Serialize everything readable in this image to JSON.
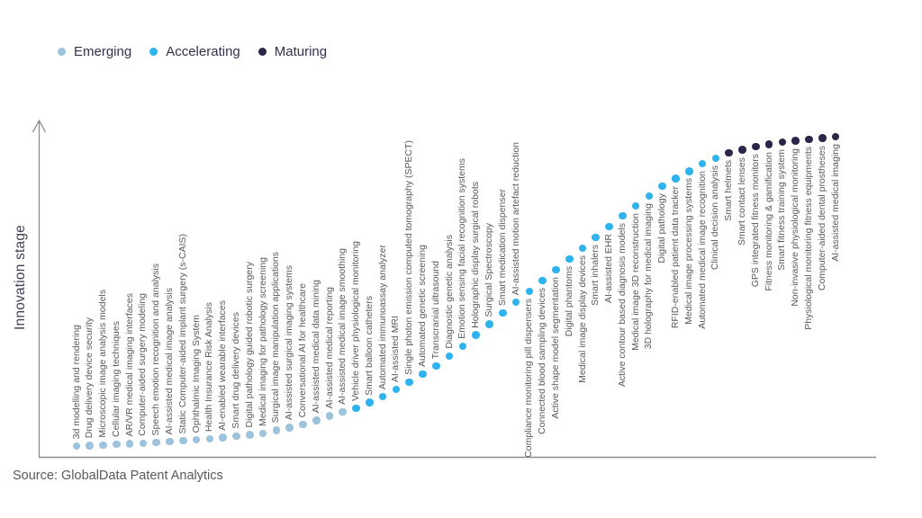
{
  "legend": {
    "items": [
      {
        "label": "Emerging",
        "color": "#9CC2DC"
      },
      {
        "label": "Accelerating",
        "color": "#2FB3EE"
      },
      {
        "label": "Maturing",
        "color": "#2B2649"
      }
    ]
  },
  "source_text": "Source: GlobalData Patent Analytics",
  "chart_data": {
    "type": "scatter",
    "title": "",
    "xlabel": "",
    "ylabel": "Innovation stage",
    "grid": false,
    "legend_position": "top-left",
    "axis_color": "#8C8C8C",
    "label_color": "#595959",
    "stage_colors": {
      "Emerging": "#9CC2DC",
      "Accelerating": "#2FB3EE",
      "Maturing": "#2B2649"
    },
    "description": "Technologies ordered left-to-right by increasing innovation stage along an S-curve; no numeric axes shown",
    "points": [
      {
        "label": "3d modelling and rendering",
        "stage": "Emerging"
      },
      {
        "label": "Drug delivery device security",
        "stage": "Emerging"
      },
      {
        "label": "Microscopic image analysis models",
        "stage": "Emerging"
      },
      {
        "label": "Cellular imaging techniques",
        "stage": "Emerging"
      },
      {
        "label": "AR/VR medical imaging interfaces",
        "stage": "Emerging"
      },
      {
        "label": "Computer-aided surgery modeling",
        "stage": "Emerging"
      },
      {
        "label": "Speech emotion recognition and analysis",
        "stage": "Emerging"
      },
      {
        "label": "AI-assisted medical image analysis",
        "stage": "Emerging"
      },
      {
        "label": "Static Computer-aided implant surgery (s-CAIS)",
        "stage": "Emerging"
      },
      {
        "label": "Ophthalmic Imaging System",
        "stage": "Emerging"
      },
      {
        "label": "Health Insurance Risk Analysis",
        "stage": "Emerging"
      },
      {
        "label": "AI-enabled wearable interfaces",
        "stage": "Emerging"
      },
      {
        "label": "Smart drug delivery devices",
        "stage": "Emerging"
      },
      {
        "label": "Digital pathology guided robotic surgery",
        "stage": "Emerging"
      },
      {
        "label": "Medical imaging for pathology screening",
        "stage": "Emerging"
      },
      {
        "label": "Surgical image manipulation applications",
        "stage": "Emerging"
      },
      {
        "label": "AI-assisted surgical imaging systems",
        "stage": "Emerging"
      },
      {
        "label": "Conversational AI for healthcare",
        "stage": "Emerging"
      },
      {
        "label": "AI-assisted medical data mining",
        "stage": "Emerging"
      },
      {
        "label": "AI-assisted medical reporting",
        "stage": "Emerging"
      },
      {
        "label": "AI-assisted medical image smoothing",
        "stage": "Emerging"
      },
      {
        "label": "Vehicle driver physiological monitoring",
        "stage": "Accelerating"
      },
      {
        "label": "Smart balloon catheters",
        "stage": "Accelerating"
      },
      {
        "label": "Automated immunoassay analyzer",
        "stage": "Accelerating"
      },
      {
        "label": "AI-assisted MRI",
        "stage": "Accelerating"
      },
      {
        "label": "Single photon emission computed tomography (SPECT)",
        "stage": "Accelerating"
      },
      {
        "label": "Automated genetic screening",
        "stage": "Accelerating"
      },
      {
        "label": "Transcranial ultrasound",
        "stage": "Accelerating"
      },
      {
        "label": "Diagnostic genetic analysis",
        "stage": "Accelerating"
      },
      {
        "label": "Emotion sensing facial recognition systems",
        "stage": "Accelerating"
      },
      {
        "label": "Holographic display surgical robots",
        "stage": "Accelerating"
      },
      {
        "label": "Surgical Spectroscopy",
        "stage": "Accelerating"
      },
      {
        "label": "Smart medication dispenser",
        "stage": "Accelerating"
      },
      {
        "label": "AI-assisted motion artefact reduction",
        "stage": "Accelerating"
      },
      {
        "label": "Compliance monitoring pill dispensers",
        "stage": "Accelerating"
      },
      {
        "label": "Connected blood sampling devices",
        "stage": "Accelerating"
      },
      {
        "label": "Active shape model segmentation",
        "stage": "Accelerating"
      },
      {
        "label": "Digital phantoms",
        "stage": "Accelerating"
      },
      {
        "label": "Medical image display devices",
        "stage": "Accelerating"
      },
      {
        "label": "Smart inhalers",
        "stage": "Accelerating"
      },
      {
        "label": "AI-assisted EHR",
        "stage": "Accelerating"
      },
      {
        "label": "Active contour based diagnosis models",
        "stage": "Accelerating"
      },
      {
        "label": "Medical image 3D reconstruction",
        "stage": "Accelerating"
      },
      {
        "label": "3D holography for medical imaging",
        "stage": "Accelerating"
      },
      {
        "label": "Digital pathology",
        "stage": "Accelerating"
      },
      {
        "label": "RFID-enabled patient data tracker",
        "stage": "Accelerating"
      },
      {
        "label": "Medical image processing systems",
        "stage": "Accelerating"
      },
      {
        "label": "Automated medical image recognition",
        "stage": "Accelerating"
      },
      {
        "label": "Clinical decision analysis",
        "stage": "Accelerating"
      },
      {
        "label": "Smart helmets",
        "stage": "Maturing"
      },
      {
        "label": "Smart contact lenses",
        "stage": "Maturing"
      },
      {
        "label": "GPS integrated fitness monitors",
        "stage": "Maturing"
      },
      {
        "label": "Fitness monitoring & gamification",
        "stage": "Maturing"
      },
      {
        "label": "Smart fitness training system",
        "stage": "Maturing"
      },
      {
        "label": "Non-invasive physiological monitoring",
        "stage": "Maturing"
      },
      {
        "label": "Physiological monitoring fitness equipments",
        "stage": "Maturing"
      },
      {
        "label": "Computer-aided dental prostheses",
        "stage": "Maturing"
      },
      {
        "label": "AI-assisted medical imaging",
        "stage": "Maturing"
      }
    ]
  }
}
